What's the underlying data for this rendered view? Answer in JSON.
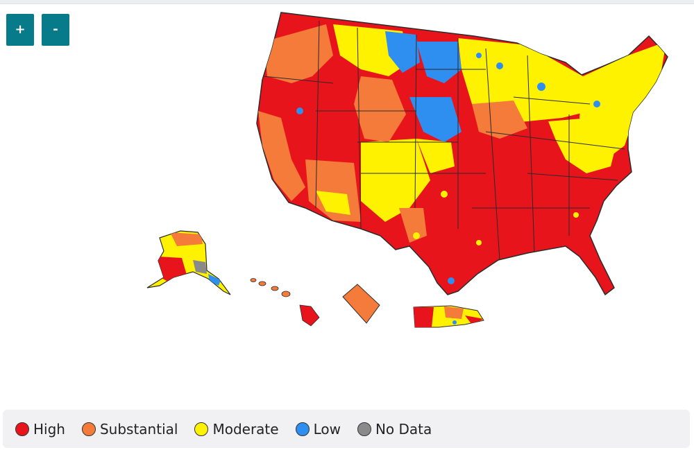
{
  "zoom": {
    "in_label": "+",
    "out_label": "-"
  },
  "legend": [
    {
      "key": "high",
      "label": "High",
      "color": "#e8141c"
    },
    {
      "key": "substantial",
      "label": "Substantial",
      "color": "#f47b3a"
    },
    {
      "key": "moderate",
      "label": "Moderate",
      "color": "#fff200"
    },
    {
      "key": "low",
      "label": "Low",
      "color": "#2e8ff0"
    },
    {
      "key": "no-data",
      "label": "No Data",
      "color": "#8a8a8a"
    }
  ],
  "colors": {
    "high": "#e8141c",
    "substantial": "#f47b3a",
    "moderate": "#fff200",
    "low": "#2e8ff0",
    "no_data": "#8a8a8a",
    "border": "#2a2a2a",
    "accent": "#087b8b"
  }
}
